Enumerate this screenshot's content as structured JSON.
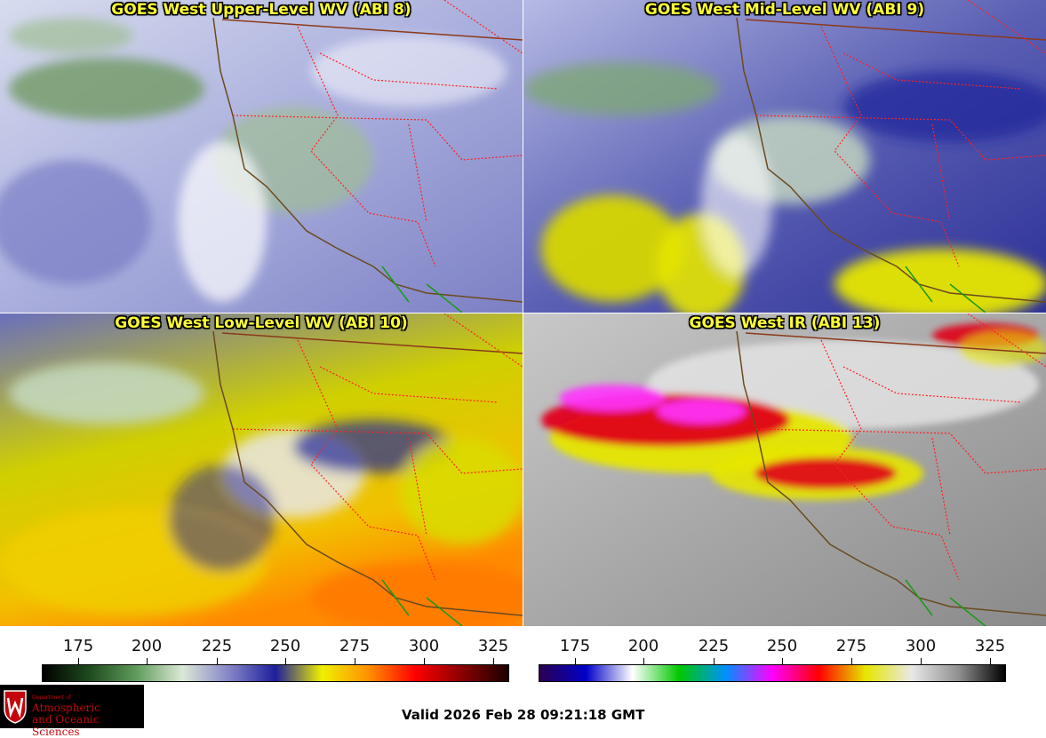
{
  "panels": [
    {
      "title": "GOES West Upper-Level WV (ABI 8)"
    },
    {
      "title": "GOES West Mid-Level WV (ABI 9)"
    },
    {
      "title": "GOES West Low-Level WV (ABI 10)"
    },
    {
      "title": "GOES West IR (ABI 13)"
    }
  ],
  "colorbars": {
    "ticks": [
      "175",
      "200",
      "225",
      "250",
      "275",
      "300",
      "325"
    ],
    "wv_colors": [
      "#000000",
      "#1e4a1e",
      "#5f9b5a",
      "#dce8d6",
      "#8585c8",
      "#1e1e9c",
      "#f0f000",
      "#ff9000",
      "#ff0000",
      "#8a0000",
      "#1a0000"
    ],
    "ir_colors": [
      "#2a0050",
      "#0000c8",
      "#ffffff",
      "#00c800",
      "#0090ff",
      "#ff00ff",
      "#ff0000",
      "#e6e600",
      "#e8e8e8",
      "#909090",
      "#000000"
    ]
  },
  "logo": {
    "line1": "Department of",
    "line2": "Atmospheric",
    "line3": "and Oceanic Sciences"
  },
  "valid_time": "Valid 2026 Feb 28 09:21:18 GMT"
}
